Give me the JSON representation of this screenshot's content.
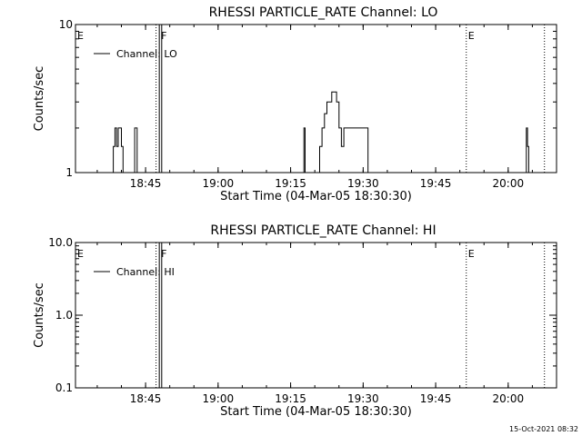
{
  "chart_data": [
    {
      "type": "line",
      "title": "RHESSI PARTICLE_RATE Channel: LO",
      "xlabel": "Start Time (04-Mar-05 18:30:30)",
      "ylabel": "Counts/sec",
      "yscale": "log",
      "ylim": [
        1,
        10
      ],
      "ytick_values": [
        1,
        10
      ],
      "ytick_labels": [
        "1",
        "10"
      ],
      "xlim": [
        "18:30:30",
        "20:10:00"
      ],
      "xtick_labels": [
        "18:45",
        "19:00",
        "19:15",
        "19:30",
        "19:45",
        "20:00"
      ],
      "legend": {
        "position": "top-left",
        "entries": [
          "Channel: LO"
        ]
      },
      "series": [
        {
          "name": "Channel: LO",
          "x": [
            "18:38:00",
            "18:38:20",
            "18:38:40",
            "18:39:00",
            "18:39:20",
            "18:39:40",
            "18:40:00",
            "18:40:20",
            "18:42:30",
            "18:42:45",
            "18:43:00",
            "18:43:15",
            "19:17:30",
            "19:17:45",
            "19:18:00",
            "19:20:30",
            "19:21:00",
            "19:21:30",
            "19:22:00",
            "19:22:30",
            "19:23:00",
            "19:23:30",
            "19:24:00",
            "19:24:30",
            "19:25:00",
            "19:25:30",
            "19:26:00",
            "19:26:30",
            "19:27:00",
            "19:30:30",
            "19:31:00",
            "20:03:30",
            "20:03:45",
            "20:04:00",
            "20:04:15"
          ],
          "y": [
            1,
            1.5,
            2,
            1.5,
            2,
            2,
            1.5,
            1,
            1,
            2,
            2,
            1,
            1,
            2,
            1,
            1,
            1.5,
            2,
            2.5,
            3,
            3,
            3.5,
            3.5,
            3,
            2,
            1.5,
            2,
            2,
            2,
            2,
            1,
            1,
            2,
            1.5,
            1
          ]
        }
      ],
      "annotations": [
        {
          "label": "E",
          "time": "18:30:30",
          "style": "text"
        },
        {
          "label": "",
          "time": "18:47:10",
          "style": "dotted"
        },
        {
          "label": "F",
          "time": "18:47:50",
          "style": "solid"
        },
        {
          "label": "",
          "time": "18:48:20",
          "style": "solid"
        },
        {
          "label": "E",
          "time": "19:51:20",
          "style": "dotted"
        },
        {
          "label": "",
          "time": "20:07:30",
          "style": "dotted"
        }
      ]
    },
    {
      "type": "line",
      "title": "RHESSI PARTICLE_RATE Channel: HI",
      "xlabel": "Start Time (04-Mar-05 18:30:30)",
      "ylabel": "Counts/sec",
      "yscale": "log",
      "ylim": [
        0.1,
        10
      ],
      "ytick_values": [
        0.1,
        1,
        10
      ],
      "ytick_labels": [
        "0.1",
        "1.0",
        "10.0"
      ],
      "xlim": [
        "18:30:30",
        "20:10:00"
      ],
      "xtick_labels": [
        "18:45",
        "19:00",
        "19:15",
        "19:30",
        "19:45",
        "20:00"
      ],
      "legend": {
        "position": "top-left",
        "entries": [
          "Channel: HI"
        ]
      },
      "series": [
        {
          "name": "Channel: HI",
          "x": [],
          "y": []
        }
      ],
      "annotations": [
        {
          "label": "E",
          "time": "18:30:30",
          "style": "text"
        },
        {
          "label": "",
          "time": "18:47:10",
          "style": "dotted"
        },
        {
          "label": "F",
          "time": "18:47:50",
          "style": "solid"
        },
        {
          "label": "",
          "time": "18:48:20",
          "style": "solid"
        },
        {
          "label": "E",
          "time": "19:51:20",
          "style": "dotted"
        },
        {
          "label": "",
          "time": "20:07:30",
          "style": "dotted"
        }
      ]
    }
  ],
  "footer": {
    "timestamp": "15-Oct-2021 08:32"
  },
  "colors": {
    "background": "#ffffff",
    "ink": "#000000"
  }
}
